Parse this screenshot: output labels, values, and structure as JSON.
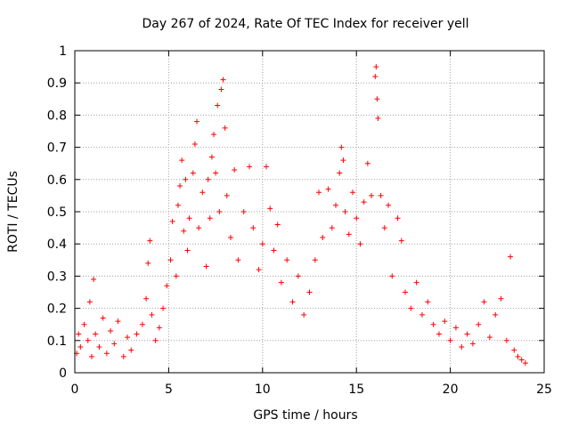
{
  "chart_data": {
    "type": "scatter",
    "title": "Day 267 of 2024, Rate Of TEC Index for receiver yell",
    "xlabel": "GPS time / hours",
    "ylabel": "ROTI / TECUs",
    "xlim": [
      0,
      25
    ],
    "ylim": [
      0,
      1
    ],
    "x_ticks": [
      0,
      5,
      10,
      15,
      20,
      25
    ],
    "x_tick_labels": [
      "0",
      "5",
      "10",
      "15",
      "20",
      "25"
    ],
    "y_ticks": [
      0,
      0.1,
      0.2,
      0.3,
      0.4,
      0.5,
      0.6,
      0.7,
      0.8,
      0.9,
      1
    ],
    "y_tick_labels": [
      "0",
      "0.1",
      "0.2",
      "0.3",
      "0.4",
      "0.5",
      "0.6",
      "0.7",
      "0.8",
      "0.9",
      "1"
    ],
    "grid": true,
    "marker": "+",
    "colors": {
      "points": "#ff0000",
      "grid": "#a0a0a0",
      "axis": "#000000"
    },
    "series": [
      {
        "name": "ROTI",
        "points": [
          [
            0.1,
            0.06
          ],
          [
            0.2,
            0.12
          ],
          [
            0.3,
            0.08
          ],
          [
            0.5,
            0.15
          ],
          [
            0.7,
            0.1
          ],
          [
            0.8,
            0.22
          ],
          [
            0.9,
            0.05
          ],
          [
            1.0,
            0.29
          ],
          [
            1.1,
            0.12
          ],
          [
            1.3,
            0.08
          ],
          [
            1.5,
            0.17
          ],
          [
            1.7,
            0.06
          ],
          [
            1.9,
            0.13
          ],
          [
            2.1,
            0.09
          ],
          [
            2.3,
            0.16
          ],
          [
            2.6,
            0.05
          ],
          [
            2.8,
            0.11
          ],
          [
            3.0,
            0.07
          ],
          [
            3.3,
            0.12
          ],
          [
            3.6,
            0.15
          ],
          [
            3.8,
            0.23
          ],
          [
            3.9,
            0.34
          ],
          [
            4.0,
            0.41
          ],
          [
            4.1,
            0.18
          ],
          [
            4.3,
            0.1
          ],
          [
            4.5,
            0.14
          ],
          [
            4.7,
            0.2
          ],
          [
            4.9,
            0.27
          ],
          [
            5.1,
            0.35
          ],
          [
            5.2,
            0.47
          ],
          [
            5.4,
            0.3
          ],
          [
            5.5,
            0.52
          ],
          [
            5.6,
            0.58
          ],
          [
            5.7,
            0.66
          ],
          [
            5.8,
            0.44
          ],
          [
            5.9,
            0.6
          ],
          [
            6.0,
            0.38
          ],
          [
            6.1,
            0.48
          ],
          [
            6.3,
            0.62
          ],
          [
            6.4,
            0.71
          ],
          [
            6.5,
            0.78
          ],
          [
            6.6,
            0.45
          ],
          [
            6.8,
            0.56
          ],
          [
            7.0,
            0.33
          ],
          [
            7.1,
            0.6
          ],
          [
            7.2,
            0.48
          ],
          [
            7.3,
            0.67
          ],
          [
            7.4,
            0.74
          ],
          [
            7.5,
            0.62
          ],
          [
            7.6,
            0.83
          ],
          [
            7.7,
            0.5
          ],
          [
            7.8,
            0.88
          ],
          [
            7.9,
            0.91
          ],
          [
            8.0,
            0.76
          ],
          [
            8.1,
            0.55
          ],
          [
            8.3,
            0.42
          ],
          [
            8.5,
            0.63
          ],
          [
            8.7,
            0.35
          ],
          [
            9.0,
            0.5
          ],
          [
            9.3,
            0.64
          ],
          [
            9.5,
            0.45
          ],
          [
            9.8,
            0.32
          ],
          [
            10.0,
            0.4
          ],
          [
            10.2,
            0.64
          ],
          [
            10.4,
            0.51
          ],
          [
            10.6,
            0.38
          ],
          [
            10.8,
            0.46
          ],
          [
            11.0,
            0.28
          ],
          [
            11.3,
            0.35
          ],
          [
            11.6,
            0.22
          ],
          [
            11.9,
            0.3
          ],
          [
            12.2,
            0.18
          ],
          [
            12.5,
            0.25
          ],
          [
            12.8,
            0.35
          ],
          [
            13.0,
            0.56
          ],
          [
            13.2,
            0.42
          ],
          [
            13.5,
            0.57
          ],
          [
            13.7,
            0.45
          ],
          [
            13.9,
            0.52
          ],
          [
            14.1,
            0.62
          ],
          [
            14.2,
            0.7
          ],
          [
            14.3,
            0.66
          ],
          [
            14.4,
            0.5
          ],
          [
            14.6,
            0.43
          ],
          [
            14.8,
            0.56
          ],
          [
            15.0,
            0.48
          ],
          [
            15.2,
            0.4
          ],
          [
            15.4,
            0.53
          ],
          [
            15.6,
            0.65
          ],
          [
            15.8,
            0.55
          ],
          [
            16.0,
            0.92
          ],
          [
            16.05,
            0.95
          ],
          [
            16.1,
            0.85
          ],
          [
            16.15,
            0.79
          ],
          [
            16.3,
            0.55
          ],
          [
            16.5,
            0.45
          ],
          [
            16.7,
            0.52
          ],
          [
            16.9,
            0.3
          ],
          [
            17.2,
            0.48
          ],
          [
            17.4,
            0.41
          ],
          [
            17.6,
            0.25
          ],
          [
            17.9,
            0.2
          ],
          [
            18.2,
            0.28
          ],
          [
            18.5,
            0.18
          ],
          [
            18.8,
            0.22
          ],
          [
            19.1,
            0.15
          ],
          [
            19.4,
            0.12
          ],
          [
            19.7,
            0.16
          ],
          [
            20.0,
            0.1
          ],
          [
            20.3,
            0.14
          ],
          [
            20.6,
            0.08
          ],
          [
            20.9,
            0.12
          ],
          [
            21.2,
            0.09
          ],
          [
            21.5,
            0.15
          ],
          [
            21.8,
            0.22
          ],
          [
            22.1,
            0.11
          ],
          [
            22.4,
            0.18
          ],
          [
            22.7,
            0.23
          ],
          [
            23.0,
            0.1
          ],
          [
            23.2,
            0.36
          ],
          [
            23.4,
            0.07
          ],
          [
            23.6,
            0.05
          ],
          [
            23.8,
            0.04
          ],
          [
            24.0,
            0.03
          ]
        ]
      }
    ]
  }
}
